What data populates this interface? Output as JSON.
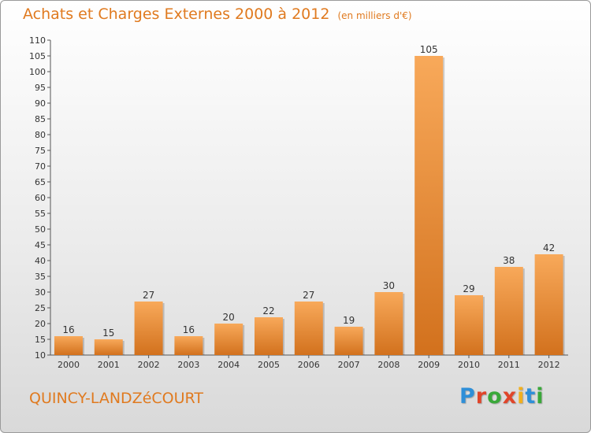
{
  "header": {
    "title": "Achats et Charges Externes 2000 à 2012",
    "subtitle": "(en milliers d'€)"
  },
  "footer": {
    "commune": "QUINCY-LANDZéCOURT",
    "logo_letters": [
      "P",
      "r",
      "o",
      "x",
      "i",
      "t",
      "i"
    ],
    "logo_colors": [
      "#2f8fd8",
      "#e0452a",
      "#3aa83a",
      "#e0452a",
      "#f2b01e",
      "#2f8fd8",
      "#3aa83a"
    ]
  },
  "chart_data": {
    "type": "bar",
    "categories": [
      "2000",
      "2001",
      "2002",
      "2003",
      "2004",
      "2005",
      "2006",
      "2007",
      "2008",
      "2009",
      "2010",
      "2011",
      "2012"
    ],
    "values": [
      16,
      15,
      27,
      16,
      20,
      22,
      27,
      19,
      30,
      105,
      29,
      38,
      42
    ],
    "ylim": [
      10,
      110
    ],
    "yticks": [
      10,
      15,
      20,
      25,
      30,
      35,
      40,
      45,
      50,
      55,
      60,
      65,
      70,
      75,
      80,
      85,
      90,
      95,
      100,
      105,
      110
    ],
    "grid": false,
    "bar_color_top": "#f8a95a",
    "bar_color_bottom": "#d2711d"
  }
}
